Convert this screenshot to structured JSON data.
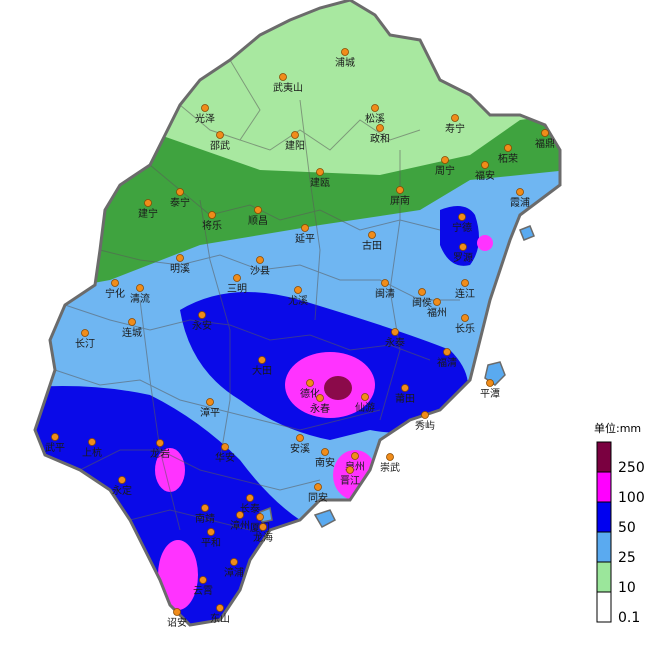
{
  "legend": {
    "title": "单位:mm",
    "items": [
      {
        "label": "250",
        "color": "#7a0040"
      },
      {
        "label": "100",
        "color": "#ff00ff"
      },
      {
        "label": "50",
        "color": "#0000f0"
      },
      {
        "label": "25",
        "color": "#5aaaf0"
      },
      {
        "label": "10",
        "color": "#9be69b"
      },
      {
        "label": "0.1",
        "color": "#ffffff"
      }
    ]
  },
  "zone_colors": {
    "light_green": "#a8e8a0",
    "green": "#3fa33f",
    "light_blue": "#6fb6f2",
    "blue": "#0a0ae8",
    "magenta": "#ff33ff",
    "dark_red": "#8b0a4a"
  },
  "cities": [
    {
      "name": "浦城"
    },
    {
      "name": "武夷山"
    },
    {
      "name": "光泽"
    },
    {
      "name": "松溪"
    },
    {
      "name": "寿宁"
    },
    {
      "name": "邵武"
    },
    {
      "name": "建阳"
    },
    {
      "name": "政和"
    },
    {
      "name": "柘荣"
    },
    {
      "name": "福鼎"
    },
    {
      "name": "周宁"
    },
    {
      "name": "福安"
    },
    {
      "name": "建瓯"
    },
    {
      "name": "泰宁"
    },
    {
      "name": "建宁"
    },
    {
      "name": "将乐"
    },
    {
      "name": "顺昌"
    },
    {
      "name": "屏南"
    },
    {
      "name": "霞浦"
    },
    {
      "name": "宁德"
    },
    {
      "name": "延平"
    },
    {
      "name": "古田"
    },
    {
      "name": "罗源"
    },
    {
      "name": "明溪"
    },
    {
      "name": "沙县"
    },
    {
      "name": "宁化"
    },
    {
      "name": "清流"
    },
    {
      "name": "三明"
    },
    {
      "name": "闽清"
    },
    {
      "name": "尤溪"
    },
    {
      "name": "闽侯"
    },
    {
      "name": "连江"
    },
    {
      "name": "福州"
    },
    {
      "name": "长乐"
    },
    {
      "name": "永安"
    },
    {
      "name": "长汀"
    },
    {
      "name": "连城"
    },
    {
      "name": "永泰"
    },
    {
      "name": "大田"
    },
    {
      "name": "福清"
    },
    {
      "name": "德化"
    },
    {
      "name": "永春"
    },
    {
      "name": "仙游"
    },
    {
      "name": "莆田"
    },
    {
      "name": "平潭"
    },
    {
      "name": "漳平"
    },
    {
      "name": "秀屿"
    },
    {
      "name": "武平"
    },
    {
      "name": "上杭"
    },
    {
      "name": "龙岩"
    },
    {
      "name": "华安"
    },
    {
      "name": "安溪"
    },
    {
      "name": "南安"
    },
    {
      "name": "泉州"
    },
    {
      "name": "崇武"
    },
    {
      "name": "晋江"
    },
    {
      "name": "永定"
    },
    {
      "name": "同安"
    },
    {
      "name": "长泰"
    },
    {
      "name": "南靖"
    },
    {
      "name": "漳州"
    },
    {
      "name": "厦门"
    },
    {
      "name": "龙海"
    },
    {
      "name": "平和"
    },
    {
      "name": "漳浦"
    },
    {
      "name": "云霄"
    },
    {
      "name": "诏安"
    },
    {
      "name": "东山"
    }
  ]
}
